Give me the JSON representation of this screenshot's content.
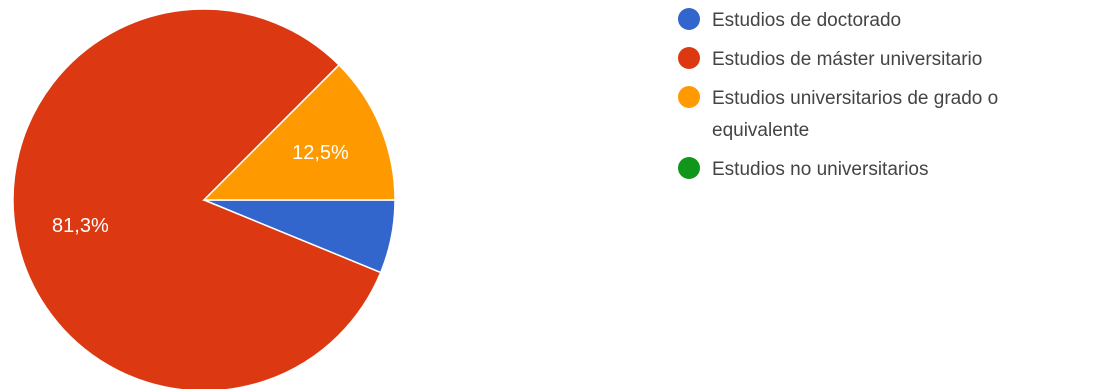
{
  "chart_data": {
    "type": "pie",
    "slices": [
      {
        "label": "Estudios de doctorado",
        "value": 6.2,
        "color": "#3366cc",
        "label_text": ""
      },
      {
        "label": "Estudios de máster universitario",
        "value": 81.3,
        "color": "#dc3912",
        "label_text": "81,3%"
      },
      {
        "label": "Estudios universitarios de grado o equivalente",
        "value": 12.5,
        "color": "#ff9900",
        "label_text": "12,5%"
      },
      {
        "label": "Estudios no universitarios",
        "value": 0,
        "color": "#109618",
        "label_text": ""
      }
    ],
    "legend": {
      "placement": "right",
      "entries": [
        {
          "lines": [
            "Estudios de doctorado"
          ],
          "color": "#3366cc"
        },
        {
          "lines": [
            "Estudios de máster universitario"
          ],
          "color": "#dc3912"
        },
        {
          "lines": [
            "Estudios universitarios de grado o",
            "equivalente"
          ],
          "color": "#ff9900"
        },
        {
          "lines": [
            "Estudios no universitarios"
          ],
          "color": "#109618"
        }
      ]
    }
  }
}
